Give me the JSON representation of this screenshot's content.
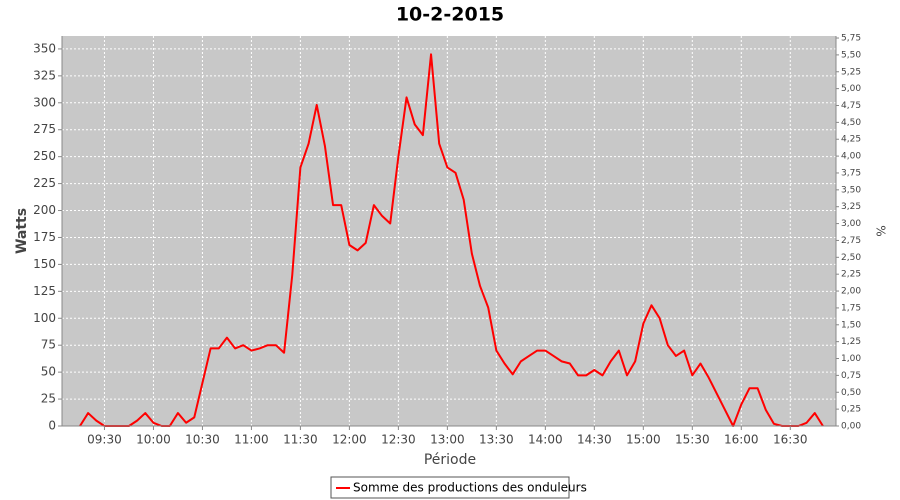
{
  "chart_data": {
    "type": "line",
    "title": "10-2-2015",
    "xlabel": "Période",
    "ylabel": "Watts",
    "y2label": "%",
    "x": [
      555,
      560,
      565,
      570,
      575,
      580,
      585,
      590,
      595,
      600,
      605,
      610,
      615,
      620,
      625,
      630,
      635,
      640,
      645,
      650,
      655,
      660,
      665,
      670,
      675,
      680,
      685,
      690,
      695,
      700,
      705,
      710,
      715,
      720,
      725,
      730,
      735,
      740,
      745,
      750,
      755,
      760,
      765,
      770,
      775,
      780,
      785,
      790,
      795,
      800,
      805,
      810,
      815,
      820,
      825,
      830,
      835,
      840,
      845,
      850,
      855,
      860,
      865,
      870,
      875,
      880,
      885,
      890,
      895,
      900,
      905,
      910,
      915,
      920,
      925,
      930,
      935,
      940,
      945,
      950,
      955,
      960,
      965,
      970,
      975,
      980,
      985,
      990,
      995,
      1000,
      1005,
      1010
    ],
    "series": [
      {
        "name": "Somme des productions des onduleurs",
        "color": "#ff0000",
        "values": [
          0,
          12,
          5,
          0,
          0,
          0,
          0,
          5,
          12,
          3,
          0,
          0,
          12,
          3,
          8,
          40,
          72,
          72,
          82,
          72,
          75,
          70,
          72,
          75,
          75,
          68,
          140,
          240,
          262,
          298,
          260,
          205,
          205,
          168,
          163,
          170,
          205,
          195,
          188,
          250,
          305,
          280,
          270,
          345,
          262,
          240,
          235,
          210,
          160,
          130,
          110,
          70,
          58,
          48,
          60,
          65,
          70,
          70,
          65,
          60,
          58,
          47,
          47,
          52,
          47,
          60,
          70,
          47,
          60,
          95,
          112,
          100,
          75,
          65,
          70,
          47,
          58,
          45,
          30,
          15,
          0,
          20,
          35,
          35,
          15,
          2,
          0,
          0,
          0,
          3,
          12,
          0
        ]
      }
    ],
    "xlim": [
      544,
      1018
    ],
    "xticks": [
      {
        "value": 570,
        "label": "09:30"
      },
      {
        "value": 600,
        "label": "10:00"
      },
      {
        "value": 630,
        "label": "10:30"
      },
      {
        "value": 660,
        "label": "11:00"
      },
      {
        "value": 690,
        "label": "11:30"
      },
      {
        "value": 720,
        "label": "12:00"
      },
      {
        "value": 750,
        "label": "12:30"
      },
      {
        "value": 780,
        "label": "13:00"
      },
      {
        "value": 810,
        "label": "13:30"
      },
      {
        "value": 840,
        "label": "14:00"
      },
      {
        "value": 870,
        "label": "14:30"
      },
      {
        "value": 900,
        "label": "15:00"
      },
      {
        "value": 930,
        "label": "15:30"
      },
      {
        "value": 960,
        "label": "16:00"
      },
      {
        "value": 990,
        "label": "16:30"
      }
    ],
    "ylim": [
      0,
      362
    ],
    "yticks": [
      0,
      25,
      50,
      75,
      100,
      125,
      150,
      175,
      200,
      225,
      250,
      275,
      300,
      325,
      350
    ],
    "y2lim": [
      0,
      5.78
    ],
    "y2ticks": [
      {
        "value": 0,
        "label": "0,00"
      },
      {
        "value": 0.25,
        "label": "0,25"
      },
      {
        "value": 0.5,
        "label": "0,50"
      },
      {
        "value": 0.75,
        "label": "0,75"
      },
      {
        "value": 1,
        "label": "1,00"
      },
      {
        "value": 1.25,
        "label": "1,25"
      },
      {
        "value": 1.5,
        "label": "1,50"
      },
      {
        "value": 1.75,
        "label": "1,75"
      },
      {
        "value": 2,
        "label": "2,00"
      },
      {
        "value": 2.25,
        "label": "2,25"
      },
      {
        "value": 2.5,
        "label": "2,50"
      },
      {
        "value": 2.75,
        "label": "2,75"
      },
      {
        "value": 3,
        "label": "3,00"
      },
      {
        "value": 3.25,
        "label": "3,25"
      },
      {
        "value": 3.5,
        "label": "3,50"
      },
      {
        "value": 3.75,
        "label": "3,75"
      },
      {
        "value": 4,
        "label": "4,00"
      },
      {
        "value": 4.25,
        "label": "4,25"
      },
      {
        "value": 4.5,
        "label": "4,50"
      },
      {
        "value": 4.75,
        "label": "4,75"
      },
      {
        "value": 5,
        "label": "5,00"
      },
      {
        "value": 5.25,
        "label": "5,25"
      },
      {
        "value": 5.5,
        "label": "5,50"
      },
      {
        "value": 5.75,
        "label": "5,75"
      }
    ],
    "grid": true
  }
}
